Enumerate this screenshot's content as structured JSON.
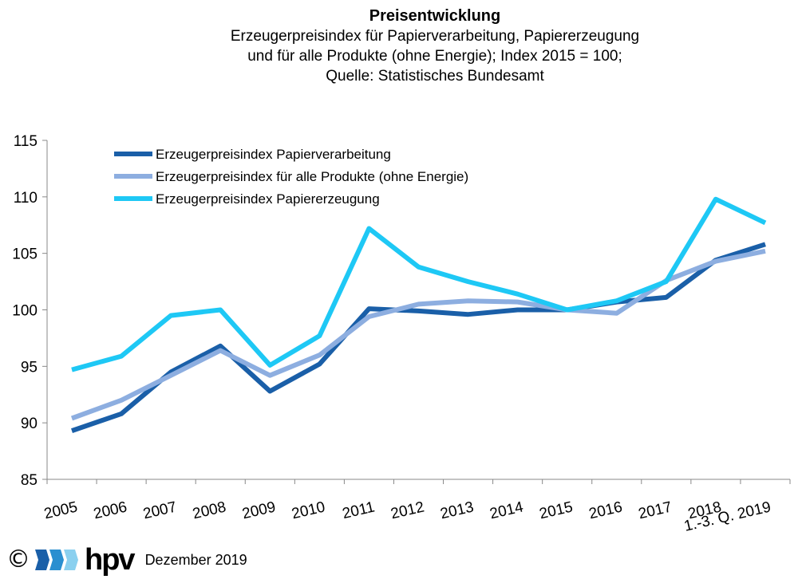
{
  "header": {
    "title": "Preisentwicklung",
    "subtitle_line1": "Erzeugerpreisindex für Papierverarbeitung, Papiererzeugung",
    "subtitle_line2": "und für alle Produkte (ohne Energie); Index 2015 = 100;",
    "subtitle_line3": "Quelle: Statistisches Bundesamt"
  },
  "footer": {
    "copyright": "©",
    "logo_text": "hpv",
    "date": "Dezember 2019"
  },
  "chart_data": {
    "type": "line",
    "categories": [
      "2005",
      "2006",
      "2007",
      "2008",
      "2009",
      "2010",
      "2011",
      "2012",
      "2013",
      "2014",
      "2015",
      "2016",
      "2017",
      "2018",
      "1.-3. Q. 2019"
    ],
    "category_labels": [
      [
        "2005"
      ],
      [
        "2006"
      ],
      [
        "2007"
      ],
      [
        "2008"
      ],
      [
        "2009"
      ],
      [
        "2010"
      ],
      [
        "2011"
      ],
      [
        "2012"
      ],
      [
        "2013"
      ],
      [
        "2014"
      ],
      [
        "2015"
      ],
      [
        "2016"
      ],
      [
        "2017"
      ],
      [
        "2018"
      ],
      [
        "1.-3. Q. 2019"
      ]
    ],
    "ylim": [
      85,
      115
    ],
    "yticks": [
      85,
      90,
      95,
      100,
      105,
      110,
      115
    ],
    "legend_position": "top-left",
    "grid": false,
    "series": [
      {
        "name": "Erzeugerpreisindex Papierverarbeitung",
        "color": "#1a5fa8",
        "values": [
          89.3,
          90.8,
          94.5,
          96.8,
          92.8,
          95.2,
          100.1,
          99.9,
          99.6,
          100.0,
          100.0,
          100.7,
          101.1,
          104.4,
          105.8
        ]
      },
      {
        "name": "Erzeugerpreisindex für alle Produkte (ohne Energie)",
        "color": "#8daee0",
        "values": [
          90.4,
          92.0,
          94.2,
          96.4,
          94.2,
          96.0,
          99.4,
          100.5,
          100.8,
          100.7,
          100.0,
          99.7,
          102.6,
          104.3,
          105.2
        ]
      },
      {
        "name": "Erzeugerpreisindex Papiererzeugung",
        "color": "#1ec8f5",
        "values": [
          94.7,
          95.9,
          99.5,
          100.0,
          95.1,
          97.7,
          107.2,
          103.8,
          102.5,
          101.4,
          100.0,
          100.8,
          102.5,
          109.8,
          107.7
        ]
      }
    ]
  }
}
